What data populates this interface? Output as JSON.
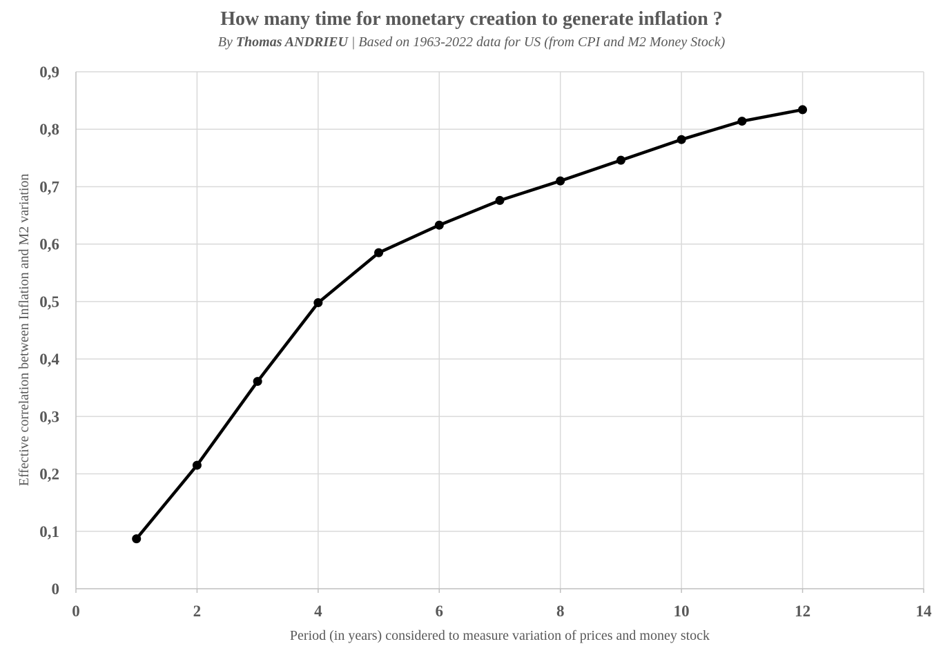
{
  "chart_data": {
    "type": "line",
    "title": "How many time for monetary creation to generate inflation ?",
    "subtitle_prefix": "By ",
    "subtitle_author": "Thomas ANDRIEU",
    "subtitle_rest": " | Based on 1963-2022 data for US (from CPI and M2 Money Stock)",
    "xlabel": "Period (in years) considered to measure variation of prices and money stock",
    "ylabel": "Effective correlation between Inflation and M2 variation",
    "xlim": [
      0,
      14
    ],
    "ylim": [
      0,
      0.9
    ],
    "x_ticks": [
      0,
      2,
      4,
      6,
      8,
      10,
      12,
      14
    ],
    "x_tick_labels": [
      "0",
      "2",
      "4",
      "6",
      "8",
      "10",
      "12",
      "14"
    ],
    "y_ticks": [
      0,
      0.1,
      0.2,
      0.3,
      0.4,
      0.5,
      0.6,
      0.7,
      0.8,
      0.9
    ],
    "y_tick_labels": [
      "0",
      "0,1",
      "0,2",
      "0,3",
      "0,4",
      "0,5",
      "0,6",
      "0,7",
      "0,8",
      "0,9"
    ],
    "grid": true,
    "legend": "none",
    "series": [
      {
        "color": "#000000",
        "x": [
          1,
          2,
          3,
          4,
          5,
          6,
          7,
          8,
          9,
          10,
          11,
          12
        ],
        "values": [
          0.087,
          0.215,
          0.361,
          0.498,
          0.585,
          0.633,
          0.676,
          0.71,
          0.746,
          0.782,
          0.814,
          0.834
        ]
      }
    ],
    "gridline_color": "#d9d9d9",
    "text_color": "#595959"
  }
}
